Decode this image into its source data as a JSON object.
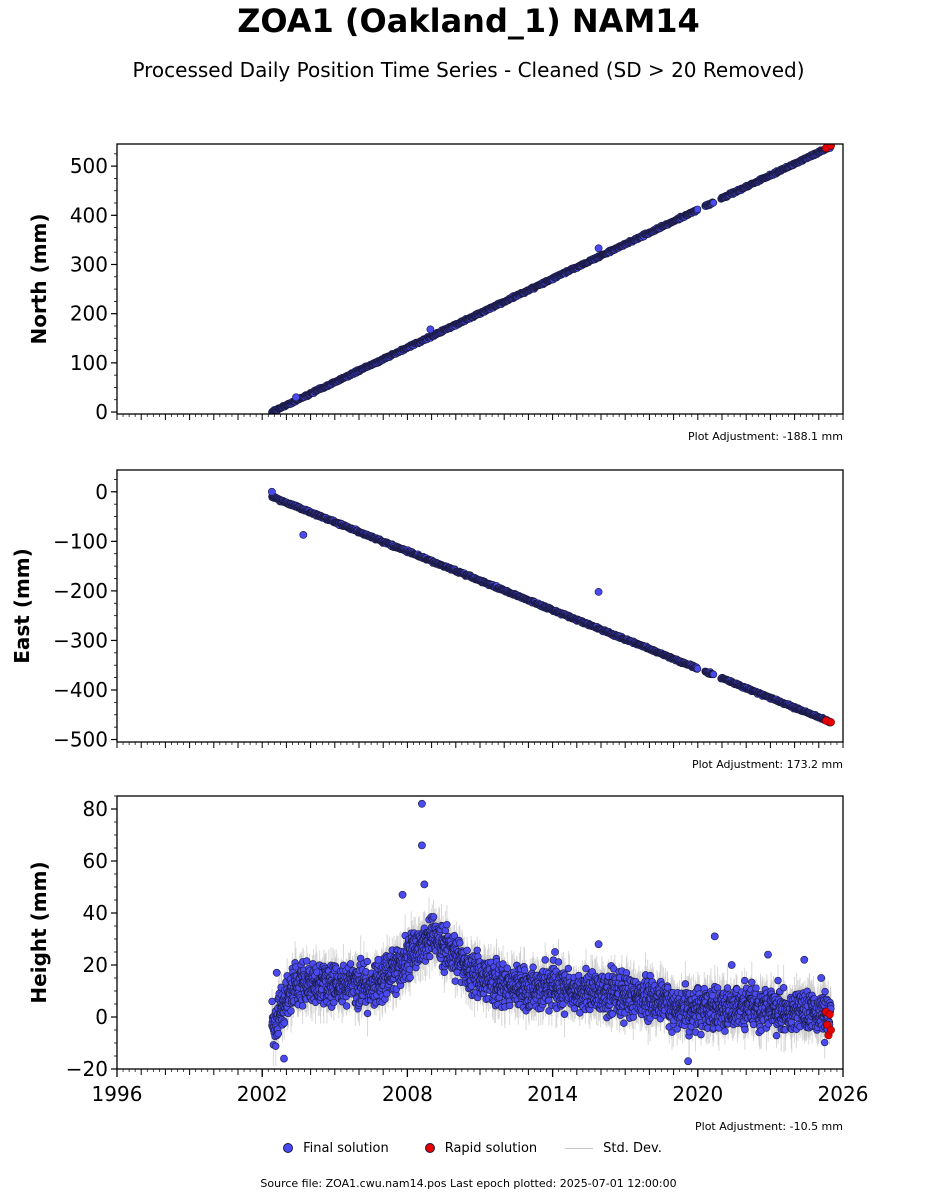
{
  "title": "ZOA1 (Oakland_1) NAM14",
  "subtitle": "Processed Daily Position Time Series - Cleaned (SD > 20 Removed)",
  "colors": {
    "final": "#4a4af0",
    "rapid": "#e60000",
    "stddev": "#c8c8c8",
    "edge": "#1a1a40"
  },
  "legend": [
    {
      "label": "Final solution",
      "kind": "final"
    },
    {
      "label": "Rapid solution",
      "kind": "rapid"
    },
    {
      "label": "Std. Dev.",
      "kind": "stddev"
    }
  ],
  "footer": "Source file: ZOA1.cwu.nam14.pos  Last epoch plotted: 2025-07-01 12:00:00",
  "chart_data": [
    {
      "type": "scatter",
      "ylabel": "North (mm)",
      "xlim": [
        1996,
        2026
      ],
      "ylim": [
        -4,
        545
      ],
      "yticks": [
        0,
        100,
        200,
        300,
        400,
        500
      ],
      "adjustment": "Plot Adjustment: -188.1 mm",
      "trend": {
        "x0": 2002.4,
        "y0": 0,
        "x1": 2025.5,
        "y1": 540
      },
      "gaps": [
        [
          2020.0,
          2020.3
        ],
        [
          2020.65,
          2020.95
        ]
      ],
      "outliers": [
        [
          2015.9,
          333
        ],
        [
          2008.95,
          168
        ],
        [
          2003.4,
          30
        ]
      ],
      "rapid": {
        "x": [
          2025.3,
          2025.5
        ],
        "y": [
          537,
          542
        ]
      }
    },
    {
      "type": "scatter",
      "ylabel": "East (mm)",
      "xlim": [
        1996,
        2026
      ],
      "ylim": [
        -505,
        44
      ],
      "yticks": [
        0,
        -100,
        -200,
        -300,
        -400,
        -500
      ],
      "adjustment": "Plot Adjustment: 173.2 mm",
      "trend": {
        "x0": 2002.4,
        "y0": -10,
        "x1": 2025.5,
        "y1": -465
      },
      "gaps": [
        [
          2020.0,
          2020.3
        ],
        [
          2020.65,
          2020.95
        ]
      ],
      "outliers": [
        [
          2003.7,
          -87
        ],
        [
          2015.9,
          -202
        ],
        [
          2002.4,
          0
        ]
      ],
      "rapid": {
        "x": [
          2025.3,
          2025.5
        ],
        "y": [
          -462,
          -465
        ]
      }
    },
    {
      "type": "scatter",
      "ylabel": "Height (mm)",
      "xlim": [
        1996,
        2026
      ],
      "ylim": [
        -20,
        85
      ],
      "yticks": [
        -20,
        0,
        20,
        40,
        60,
        80
      ],
      "xticks": [
        1996,
        2002,
        2008,
        2014,
        2020,
        2026
      ],
      "adjustment": "Plot Adjustment: -10.5 mm",
      "start": 2002.4,
      "end": 2025.5,
      "means": [
        [
          2002.4,
          -4
        ],
        [
          2002.9,
          3
        ],
        [
          2003.3,
          12
        ],
        [
          2005.0,
          13
        ],
        [
          2006.5,
          12
        ],
        [
          2007.5,
          18
        ],
        [
          2008.2,
          25
        ],
        [
          2009.0,
          30
        ],
        [
          2009.7,
          27
        ],
        [
          2010.5,
          18
        ],
        [
          2012.0,
          12
        ],
        [
          2014.0,
          11
        ],
        [
          2016.0,
          10
        ],
        [
          2018.0,
          7
        ],
        [
          2019.5,
          3
        ],
        [
          2020.5,
          4
        ],
        [
          2021.5,
          3
        ],
        [
          2023.0,
          3
        ],
        [
          2025.0,
          2
        ]
      ],
      "outliers": [
        [
          2008.6,
          82
        ],
        [
          2008.6,
          66
        ],
        [
          2008.7,
          51
        ],
        [
          2007.8,
          47
        ],
        [
          2015.9,
          28
        ],
        [
          2020.7,
          31
        ],
        [
          2019.6,
          -17
        ],
        [
          2002.6,
          17
        ],
        [
          2002.9,
          -16
        ],
        [
          2006.8,
          22
        ],
        [
          2014.1,
          25
        ],
        [
          2022.9,
          24
        ],
        [
          2024.4,
          22
        ],
        [
          2021.4,
          20
        ],
        [
          2025.1,
          15
        ]
      ],
      "rapid": {
        "x": [
          2025.3,
          2025.35,
          2025.4,
          2025.45,
          2025.5
        ],
        "y": [
          2,
          -3,
          -7,
          1,
          -5
        ]
      }
    }
  ]
}
